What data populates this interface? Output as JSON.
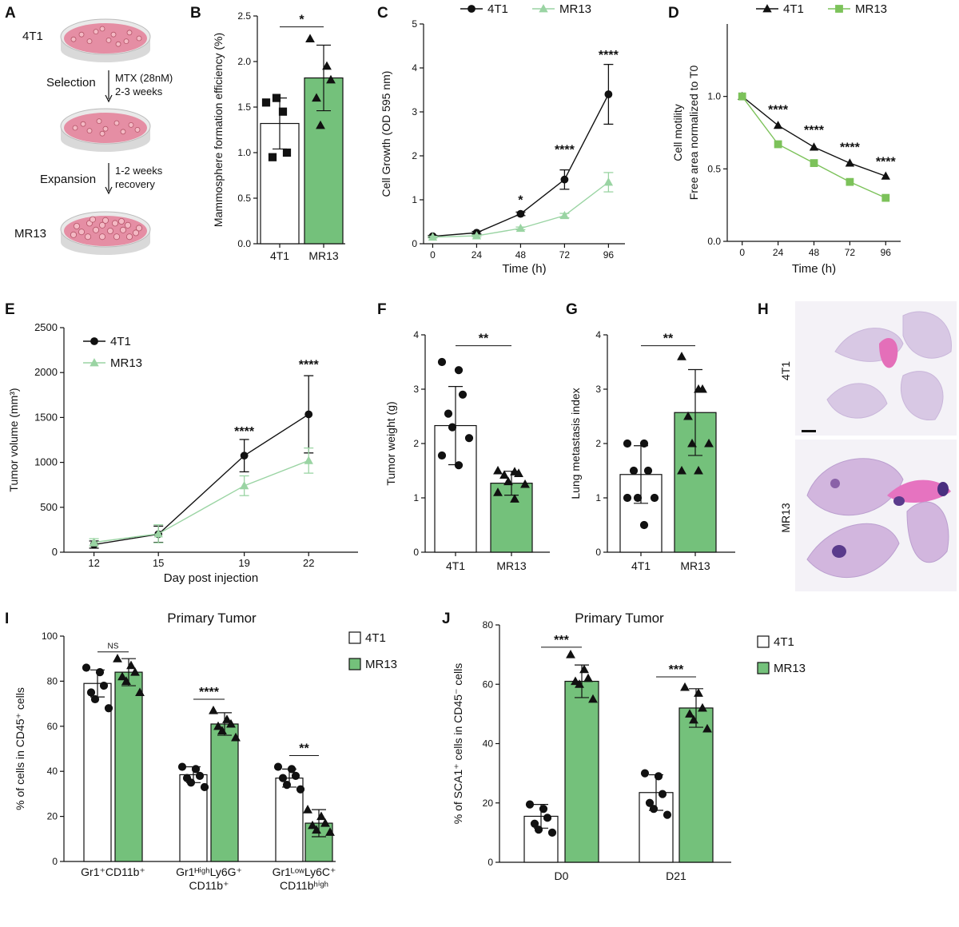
{
  "colors": {
    "ctrl": "#ffffff",
    "mr": "#74c17b",
    "mrDark": "#4f9c55",
    "lineC": "#9ad4a3",
    "lineD": "#7cc25a",
    "dish": "#e58ea4",
    "stroke": "#111111"
  },
  "panels": {
    "A": {
      "letter": "A",
      "top_label": "4T1",
      "bottom_label": "MR13",
      "step1_label": "Selection",
      "step1_detail1": "MTX (28nM)",
      "step1_detail2": "2-3 weeks",
      "step2_label": "Expansion",
      "step2_detail1": "1-2 weeks",
      "step2_detail2": "recovery"
    },
    "H": {
      "letter": "H",
      "top_label": "4T1",
      "bottom_label": "MR13"
    }
  },
  "chart_data": [
    {
      "letter": "B",
      "type": "bar",
      "ylabel": "Mammosphere formation efficiency (%)",
      "categories": [
        "4T1",
        "MR13"
      ],
      "values": [
        1.32,
        1.82
      ],
      "errors": [
        0.28,
        0.36
      ],
      "points": [
        [
          1.55,
          1.45,
          1.0,
          0.95,
          1.6
        ],
        [
          2.25,
          1.95,
          1.8,
          1.6,
          1.3
        ]
      ],
      "ylim": [
        0,
        2.5
      ],
      "yticks": [
        0,
        0.5,
        1.0,
        1.5,
        2.0,
        2.5
      ],
      "ytick_labels": [
        "0.0",
        "0.5",
        "1.0",
        "1.5",
        "2.0",
        "2.5"
      ],
      "sig": [
        {
          "text": "*",
          "i": 0,
          "j": 1,
          "y": 2.38
        }
      ]
    },
    {
      "letter": "C",
      "type": "line",
      "xlabel": "Time (h)",
      "ylabel": "Cell Growth (OD 595 nm)",
      "x": [
        0,
        24,
        48,
        72,
        96
      ],
      "xlim": [
        -5,
        105
      ],
      "ylim": [
        0,
        5
      ],
      "xticks": [
        0,
        24,
        48,
        72,
        96
      ],
      "yticks": [
        0,
        1,
        2,
        3,
        4,
        5
      ],
      "series": [
        {
          "name": "4T1",
          "values": [
            0.17,
            0.25,
            0.68,
            1.46,
            3.4
          ],
          "errors": [
            0.02,
            0.03,
            0.04,
            0.22,
            0.68
          ],
          "marker": "circle"
        },
        {
          "name": "MR13",
          "values": [
            0.15,
            0.18,
            0.35,
            0.64,
            1.4
          ],
          "errors": [
            0.02,
            0.02,
            0.03,
            0.05,
            0.22
          ],
          "marker": "triangle"
        }
      ],
      "sig": [
        {
          "x": 48,
          "y": 0.9,
          "text": "*"
        },
        {
          "x": 72,
          "y": 2.05,
          "text": "****"
        },
        {
          "x": 96,
          "y": 4.2,
          "text": "****"
        }
      ],
      "legend": "top"
    },
    {
      "letter": "D",
      "type": "line",
      "xlabel": "Time (h)",
      "ylabel": "Cell motility",
      "ylabel2": "Free area normalized to T0",
      "x": [
        0,
        24,
        48,
        72,
        96
      ],
      "xlim": [
        -10,
        106
      ],
      "ylim": [
        0,
        1.5
      ],
      "xticks": [
        0,
        24,
        48,
        72,
        96
      ],
      "yticks": [
        0,
        0.5,
        1.0
      ],
      "ytick_labels": [
        "0.0",
        "0.5",
        "1.0"
      ],
      "series": [
        {
          "name": "4T1",
          "values": [
            1.0,
            0.8,
            0.65,
            0.54,
            0.45
          ],
          "marker": "triangle"
        },
        {
          "name": "MR13",
          "values": [
            1.0,
            0.67,
            0.54,
            0.41,
            0.3
          ],
          "marker": "square"
        }
      ],
      "sig": [
        {
          "x": 24,
          "y": 0.88,
          "text": "****"
        },
        {
          "x": 48,
          "y": 0.74,
          "text": "****"
        },
        {
          "x": 72,
          "y": 0.62,
          "text": "****"
        },
        {
          "x": 96,
          "y": 0.52,
          "text": "****"
        }
      ],
      "legend": "top"
    },
    {
      "letter": "E",
      "type": "line",
      "xlabel": "Day post injection",
      "ylabel": "Tumor volume (mm³)",
      "x": [
        12,
        15,
        19,
        22
      ],
      "xlim": [
        10.6,
        24.3
      ],
      "ylim": [
        0,
        2500
      ],
      "xticks": [
        12,
        15,
        19,
        22
      ],
      "yticks": [
        0,
        500,
        1000,
        1500,
        2000,
        2500
      ],
      "series": [
        {
          "name": "4T1",
          "values": [
            85,
            200,
            1075,
            1535
          ],
          "errors": [
            40,
            90,
            180,
            430
          ],
          "marker": "circle"
        },
        {
          "name": "MR13",
          "values": [
            110,
            205,
            740,
            1020
          ],
          "errors": [
            40,
            100,
            110,
            140
          ],
          "marker": "triangle"
        }
      ],
      "sig": [
        {
          "x": 19,
          "y": 1300,
          "text": "****"
        },
        {
          "x": 22,
          "y": 2040,
          "text": "****"
        }
      ],
      "legend": "top-left"
    },
    {
      "letter": "F",
      "type": "bar",
      "ylabel": "Tumor weight (g)",
      "categories": [
        "4T1",
        "MR13"
      ],
      "values": [
        2.33,
        1.27
      ],
      "errors": [
        0.72,
        0.22
      ],
      "points": [
        [
          3.5,
          3.35,
          2.9,
          2.55,
          2.3,
          2.1,
          1.78,
          1.6
        ],
        [
          1.5,
          1.48,
          1.45,
          1.42,
          1.3,
          1.25,
          1.1,
          0.98
        ]
      ],
      "ylim": [
        0,
        4
      ],
      "yticks": [
        0,
        1,
        2,
        3,
        4
      ],
      "sig": [
        {
          "text": "**",
          "i": 0,
          "j": 1,
          "y": 3.8
        }
      ]
    },
    {
      "letter": "G",
      "type": "bar",
      "ylabel": "Lung metastasis index",
      "categories": [
        "4T1",
        "MR13"
      ],
      "values": [
        1.43,
        2.57
      ],
      "errors": [
        0.53,
        0.79
      ],
      "points": [
        [
          2.0,
          2.0,
          1.5,
          1.5,
          1.0,
          1.0,
          1.0,
          0.5
        ],
        [
          3.6,
          3.0,
          3.0,
          2.5,
          2.0,
          2.0,
          1.5,
          1.5
        ]
      ],
      "ylim": [
        0,
        4
      ],
      "yticks": [
        0,
        1,
        2,
        3,
        4
      ],
      "sig": [
        {
          "text": "**",
          "i": 0,
          "j": 1,
          "y": 3.8
        }
      ]
    },
    {
      "letter": "I",
      "type": "bar",
      "title": "Primary Tumor",
      "ylabel": "% of cells in CD45⁺ cells",
      "group_labels": [
        [
          "Gr1⁺CD11b⁺"
        ],
        [
          "Gr1ᴴⁱᵍʰLy6G⁺",
          "CD11b⁺"
        ],
        [
          "Gr1ᴸᵒʷLy6C⁺",
          "CD11bʰⁱᵍʰ"
        ]
      ],
      "series": [
        {
          "name": "4T1",
          "values": [
            79,
            38.5,
            37
          ],
          "errors": [
            6,
            3.5,
            4
          ],
          "points": [
            [
              86,
              84,
              78,
              75,
              72,
              68
            ],
            [
              42,
              41,
              38,
              37,
              35,
              33
            ],
            [
              42,
              41,
              38,
              37,
              34,
              32
            ]
          ]
        },
        {
          "name": "MR13",
          "values": [
            84,
            61,
            17
          ],
          "errors": [
            6,
            5,
            6
          ],
          "points": [
            [
              90,
              87,
              84,
              82,
              80,
              75
            ],
            [
              67,
              63,
              61,
              60,
              58,
              55
            ],
            [
              23,
              20,
              17,
              16,
              14,
              13
            ]
          ]
        }
      ],
      "ylim": [
        0,
        100
      ],
      "yticks": [
        0,
        20,
        40,
        60,
        80,
        100
      ],
      "sig": [
        {
          "group": 0,
          "text": "NS",
          "y": 93
        },
        {
          "group": 1,
          "text": "****",
          "y": 72
        },
        {
          "group": 2,
          "text": "**",
          "y": 47
        }
      ],
      "legend": "top-right"
    },
    {
      "letter": "J",
      "type": "bar",
      "title": "Primary Tumor",
      "ylabel": "% of SCA1⁺ cells in CD45⁻ cells",
      "group_labels": [
        [
          "D0"
        ],
        [
          "D21"
        ]
      ],
      "series": [
        {
          "name": "4T1",
          "values": [
            15.5,
            23.5
          ],
          "errors": [
            4,
            6
          ],
          "points": [
            [
              19.5,
              18,
              15,
              13,
              11,
              10
            ],
            [
              30,
              29,
              23,
              20,
              18,
              16
            ]
          ]
        },
        {
          "name": "MR13",
          "values": [
            61,
            52
          ],
          "errors": [
            5.5,
            6.5
          ],
          "points": [
            [
              70,
              65,
              62,
              61,
              60,
              55
            ],
            [
              59,
              57,
              52,
              50,
              48,
              45
            ]
          ]
        }
      ],
      "ylim": [
        0,
        80
      ],
      "yticks": [
        0,
        20,
        40,
        60,
        80
      ],
      "sig": [
        {
          "group": 0,
          "text": "***",
          "y": 72.5
        },
        {
          "group": 1,
          "text": "***",
          "y": 62.5
        }
      ],
      "legend": "top-right"
    }
  ]
}
